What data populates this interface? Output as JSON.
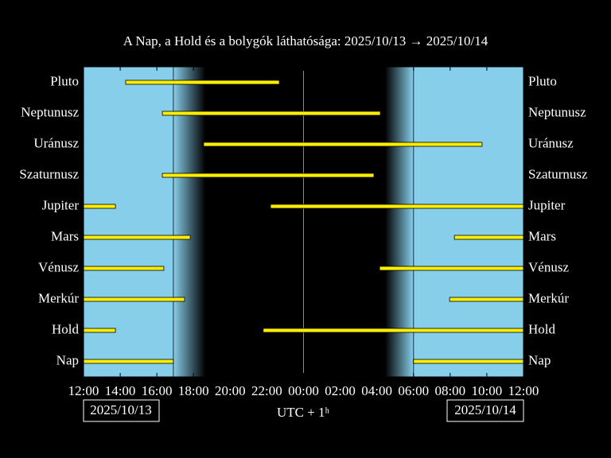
{
  "chart_data": {
    "type": "timeline",
    "title": "A Nap, a Hold és a bolygók láthatósága: 2025/10/13 → 2025/10/14",
    "xlabel": "UTC + 1ʰ",
    "start_date": "2025/10/13",
    "end_date": "2025/10/14",
    "xlim": [
      12,
      36
    ],
    "xticks": [
      {
        "value": 12,
        "label": "12:00"
      },
      {
        "value": 14,
        "label": "14:00"
      },
      {
        "value": 16,
        "label": "16:00"
      },
      {
        "value": 18,
        "label": "18:00"
      },
      {
        "value": 20,
        "label": "20:00"
      },
      {
        "value": 22,
        "label": "22:00"
      },
      {
        "value": 24,
        "label": "00:00"
      },
      {
        "value": 26,
        "label": "02:00"
      },
      {
        "value": 28,
        "label": "04:00"
      },
      {
        "value": 30,
        "label": "06:00"
      },
      {
        "value": 32,
        "label": "08:00"
      },
      {
        "value": 34,
        "label": "10:00"
      },
      {
        "value": 36,
        "label": "12:00"
      }
    ],
    "reference_lines": [
      24
    ],
    "twilight": {
      "sunset": 16.9,
      "dark_start": 18.65,
      "dark_end": 28.45,
      "sunrise": 30.0
    },
    "day_color": "#87ceeb",
    "bar_color": "#ffee00",
    "series": [
      {
        "name": "Pluto",
        "intervals": [
          [
            14.3,
            22.68
          ]
        ]
      },
      {
        "name": "Neptunusz",
        "intervals": [
          [
            16.3,
            28.19
          ]
        ]
      },
      {
        "name": "Uránusz",
        "intervals": [
          [
            18.55,
            33.74
          ]
        ]
      },
      {
        "name": "Szaturnusz",
        "intervals": [
          [
            16.3,
            27.84
          ]
        ]
      },
      {
        "name": "Jupiter",
        "intervals": [
          [
            12,
            13.74
          ],
          [
            22.2,
            36
          ]
        ]
      },
      {
        "name": "Mars",
        "intervals": [
          [
            12,
            17.82
          ],
          [
            32.23,
            36
          ]
        ]
      },
      {
        "name": "Vénusz",
        "intervals": [
          [
            12,
            16.38
          ],
          [
            28.15,
            36
          ]
        ]
      },
      {
        "name": "Merkúr",
        "intervals": [
          [
            12,
            17.51
          ],
          [
            31.97,
            36
          ]
        ]
      },
      {
        "name": "Hold",
        "intervals": [
          [
            12,
            13.74
          ],
          [
            21.8,
            36
          ]
        ]
      },
      {
        "name": "Nap",
        "intervals": [
          [
            12,
            16.9
          ],
          [
            30.0,
            36
          ]
        ]
      }
    ]
  }
}
